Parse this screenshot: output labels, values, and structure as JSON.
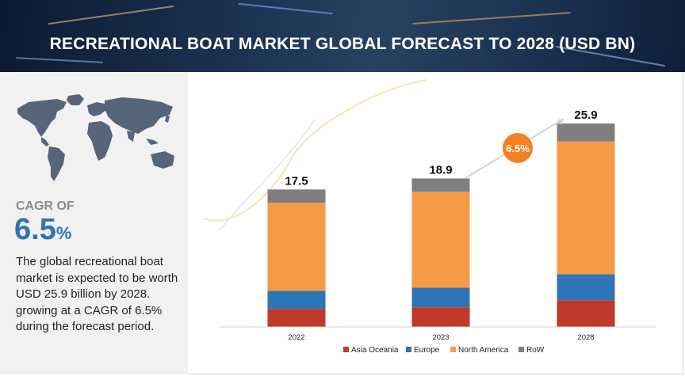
{
  "header": {
    "title_part1": "RECREATIONAL BOAT MARKET ",
    "title_part2": "GLOBAL FORECAST TO 2028 (USD BN)"
  },
  "sidebar": {
    "map_icon": "world-map-icon",
    "cagr_label": "CAGR OF",
    "cagr_number": "6.5",
    "cagr_unit": "%",
    "description": "The global recreational boat market is expected to be worth USD 25.9 billion by 2028. growing at a CAGR of 6.5% during the forecast period."
  },
  "colors": {
    "asia_oceania": "#c0392b",
    "europe": "#2e75b6",
    "north_america": "#f79a46",
    "row": "#7f7f7f",
    "cagr_bubble": "#f4801f",
    "accent_blue": "#2d74b5"
  },
  "chart_data": {
    "type": "bar",
    "stacked": true,
    "categories": [
      "2022",
      "2023",
      "2028"
    ],
    "series": [
      {
        "name": "Asia Oceania",
        "values": [
          2.3,
          2.5,
          3.4
        ]
      },
      {
        "name": "Europe",
        "values": [
          2.3,
          2.5,
          3.3
        ]
      },
      {
        "name": "North America",
        "values": [
          11.2,
          12.2,
          16.9
        ]
      },
      {
        "name": "RoW",
        "values": [
          1.7,
          1.7,
          2.3
        ]
      }
    ],
    "totals": [
      "17.5",
      "18.9",
      "25.9"
    ],
    "annotation": "6.5%",
    "legend_position": "bottom",
    "ylim": [
      0,
      30
    ],
    "grid": false,
    "xlabel": "",
    "ylabel": ""
  }
}
